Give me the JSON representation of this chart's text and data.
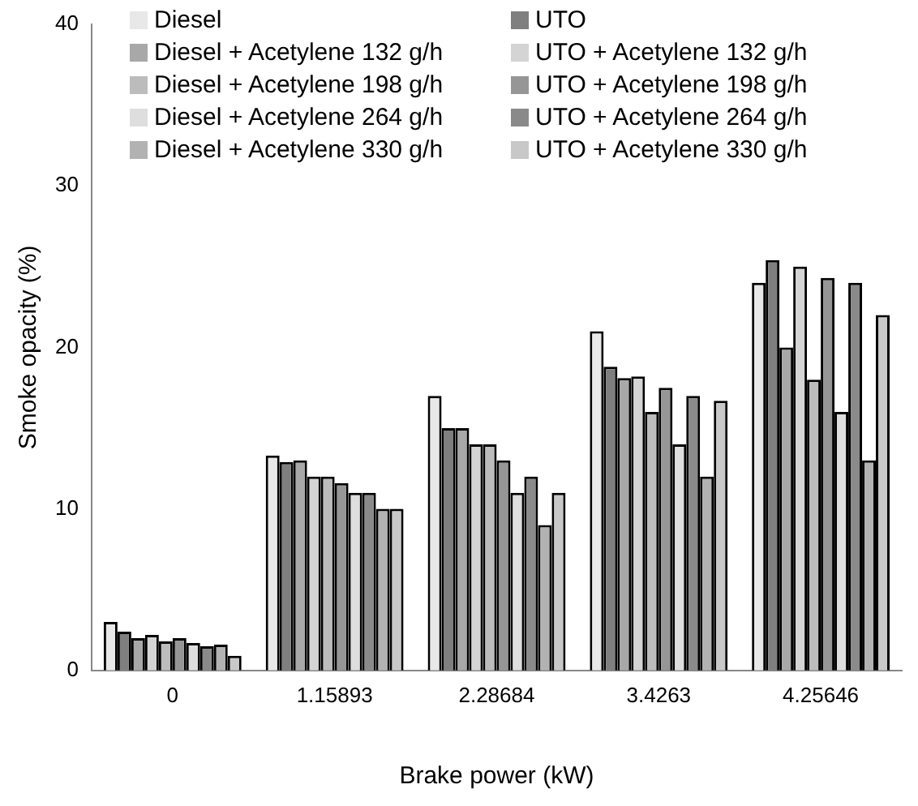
{
  "chart_data": {
    "type": "bar",
    "xlabel": "Brake power (kW)",
    "ylabel": "Smoke opacity (%)",
    "categories": [
      "0",
      "1.15893",
      "2.28684",
      "3.4263",
      "4.25646"
    ],
    "ylim": [
      0,
      40
    ],
    "yticks": [
      0,
      10,
      20,
      30,
      40
    ],
    "grid": false,
    "legend": "top",
    "series": [
      {
        "name": "Diesel",
        "color": "#e8e8e8",
        "values": [
          3.0,
          13.3,
          17,
          21,
          24
        ]
      },
      {
        "name": "UTO",
        "color": "#7f7f7f",
        "values": [
          2.4,
          12.9,
          15,
          18.8,
          25.4
        ]
      },
      {
        "name": "Diesel + Acetylene 132 g/h",
        "color": "#a8a8a8",
        "values": [
          2.0,
          13.0,
          15,
          18.1,
          20
        ]
      },
      {
        "name": "UTO + Acetylene 132 g/h",
        "color": "#d4d4d4",
        "values": [
          2.2,
          12.0,
          14,
          18.2,
          25
        ]
      },
      {
        "name": "Diesel + Acetylene 198 g/h",
        "color": "#bcbcbc",
        "values": [
          1.8,
          12.0,
          14,
          16,
          18
        ]
      },
      {
        "name": "UTO + Acetylene 198 g/h",
        "color": "#969696",
        "values": [
          2.0,
          11.6,
          13,
          17.5,
          24.3
        ]
      },
      {
        "name": "Diesel + Acetylene 264 g/h",
        "color": "#dedede",
        "values": [
          1.7,
          11.0,
          11,
          14,
          16
        ]
      },
      {
        "name": "UTO + Acetylene 264 g/h",
        "color": "#8a8a8a",
        "values": [
          1.5,
          11.0,
          12,
          17,
          24
        ]
      },
      {
        "name": "Diesel + Acetylene 330 g/h",
        "color": "#b2b2b2",
        "values": [
          1.6,
          10.0,
          9,
          12,
          13
        ]
      },
      {
        "name": "UTO + Acetylene 330 g/h",
        "color": "#c8c8c8",
        "values": [
          0.9,
          10.0,
          11,
          16.7,
          22
        ]
      }
    ]
  }
}
